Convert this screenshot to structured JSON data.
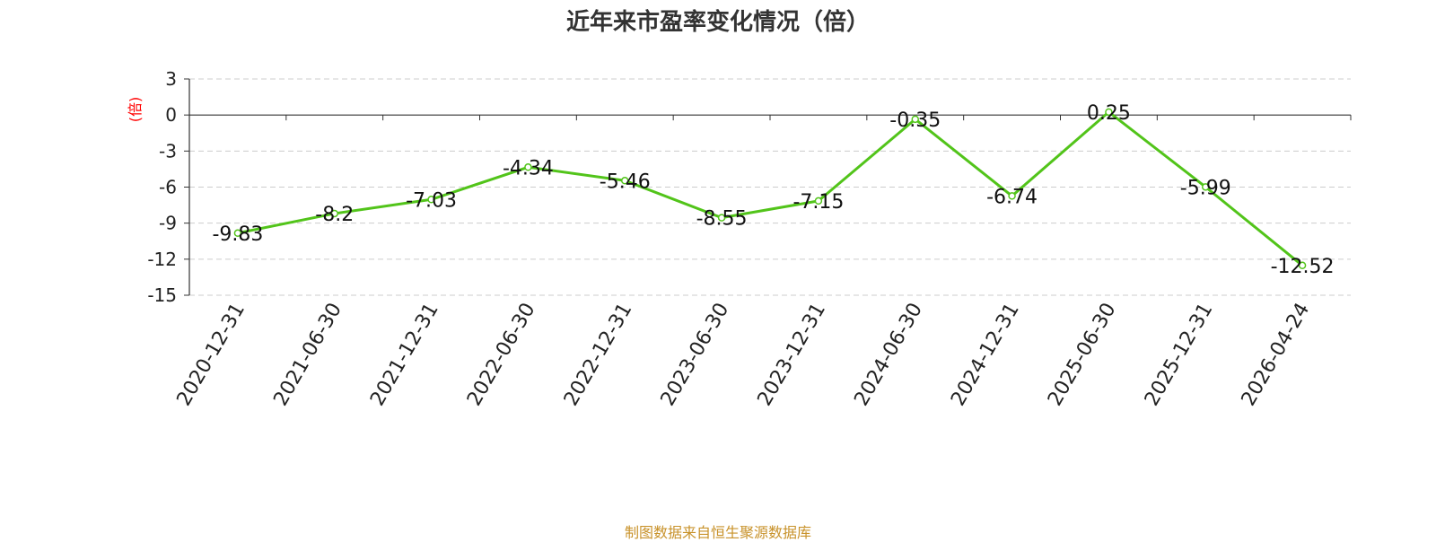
{
  "chart_data": {
    "type": "line",
    "title": "近年来市盈率变化情况（倍）",
    "ylabel": "(倍)",
    "xlabel": "",
    "categories": [
      "2020-12-31",
      "2021-06-30",
      "2021-12-31",
      "2022-06-30",
      "2022-12-31",
      "2023-06-30",
      "2023-12-31",
      "2024-06-30",
      "2024-12-31",
      "2025-06-30",
      "2025-12-31",
      "2026-04-24"
    ],
    "values": [
      -9.83,
      -8.2,
      -7.03,
      -4.34,
      -5.46,
      -8.55,
      -7.15,
      -0.35,
      -6.74,
      0.25,
      -5.99,
      -12.52
    ],
    "data_labels": [
      "-9.83",
      "-8.2",
      "-7.03",
      "-4.34",
      "-5.46",
      "-8.55",
      "-7.15",
      "-0.35",
      "-6.74",
      "0.25",
      "-5.99",
      "-12.52"
    ],
    "yticks": [
      3,
      0,
      -3,
      -6,
      -9,
      -12,
      -15
    ],
    "ytick_labels": [
      "3",
      "0",
      "-3",
      "-6",
      "-9",
      "-12",
      "-15"
    ],
    "ylim": [
      -15,
      3
    ],
    "grid": true,
    "legend": "none",
    "colors": {
      "line": "#52c41a",
      "ylabel": "#ff0000",
      "axis": "#333333",
      "grid": "#cccccc"
    }
  },
  "source_note": "制图数据来自恒生聚源数据库"
}
